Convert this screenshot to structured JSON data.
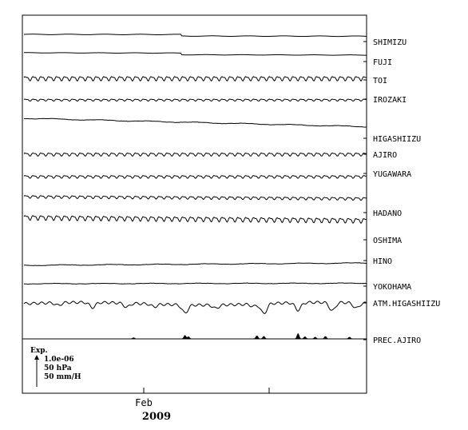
{
  "chart_data": {
    "type": "line",
    "title": "",
    "x": {
      "ticks": [
        "Feb"
      ],
      "year": "2009"
    },
    "scale": {
      "label": "Exp.",
      "lines": [
        "1.0e-06",
        "50 hPa",
        "50 mm/H"
      ]
    },
    "series": [
      {
        "name": "SHIMIZU",
        "style": "step",
        "level": 0.0,
        "trend": -0.1,
        "step_at": 0.46,
        "step_size": -0.45,
        "ripple": 0.08,
        "period": 0
      },
      {
        "name": "FUJI",
        "style": "step",
        "level": 0.0,
        "trend": -0.2,
        "step_at": 0.46,
        "step_size": -0.5,
        "ripple": 0.06,
        "period": 0
      },
      {
        "name": "TOI",
        "style": "tidal",
        "level": 0.0,
        "trend": 0.0,
        "amp": 0.55,
        "period": 0.023
      },
      {
        "name": "IROZAKI",
        "style": "tidal",
        "level": 0.0,
        "trend": 0.0,
        "amp": 0.25,
        "period": 0.023
      },
      {
        "name": "HIGASHIIZU",
        "style": "drift",
        "level": 0.0,
        "trend": -2.5,
        "ripple": 0.12,
        "period": 0
      },
      {
        "name": "AJIRO",
        "style": "tidal",
        "level": 0.0,
        "trend": 0.0,
        "amp": 0.4,
        "period": 0.023
      },
      {
        "name": "YUGAWARA",
        "style": "tidal",
        "level": 0.0,
        "trend": 0.0,
        "amp": 0.35,
        "period": 0.023
      },
      {
        "name": "HADANO",
        "style": "tidal",
        "level": 0.0,
        "trend": -0.6,
        "amp": 0.35,
        "period": 0.023
      },
      {
        "name": "OSHIMA",
        "style": "tidal",
        "level": 0.0,
        "trend": -0.9,
        "amp": 0.6,
        "period": 0.023
      },
      {
        "name": "HINO",
        "style": "drift",
        "level": 0.0,
        "trend": 0.7,
        "ripple": 0.1,
        "period": 0
      },
      {
        "name": "YOKOHAMA",
        "style": "drift",
        "level": 0.0,
        "trend": 0.15,
        "ripple": 0.08,
        "period": 0
      },
      {
        "name": "ATM.HIGASHIIZU",
        "style": "pressure",
        "level": 0.0,
        "trend": 0.0,
        "dips": [
          [
            0.1,
            0.8
          ],
          [
            0.2,
            1.5
          ],
          [
            0.3,
            1.2
          ],
          [
            0.38,
            0.8
          ],
          [
            0.47,
            2.4
          ],
          [
            0.56,
            1.0
          ],
          [
            0.67,
            0.7
          ],
          [
            0.7,
            3.0
          ],
          [
            0.8,
            2.2
          ],
          [
            0.9,
            2.5
          ],
          [
            0.97,
            1.6
          ]
        ]
      },
      {
        "name": "PREC.AJIRO",
        "style": "precip",
        "level": 0.0,
        "events": [
          [
            0.32,
            0.3
          ],
          [
            0.47,
            1.0
          ],
          [
            0.48,
            0.6
          ],
          [
            0.68,
            0.9
          ],
          [
            0.7,
            0.7
          ],
          [
            0.8,
            1.5
          ],
          [
            0.82,
            0.6
          ],
          [
            0.85,
            0.5
          ],
          [
            0.88,
            0.7
          ],
          [
            0.95,
            0.5
          ]
        ]
      }
    ]
  }
}
